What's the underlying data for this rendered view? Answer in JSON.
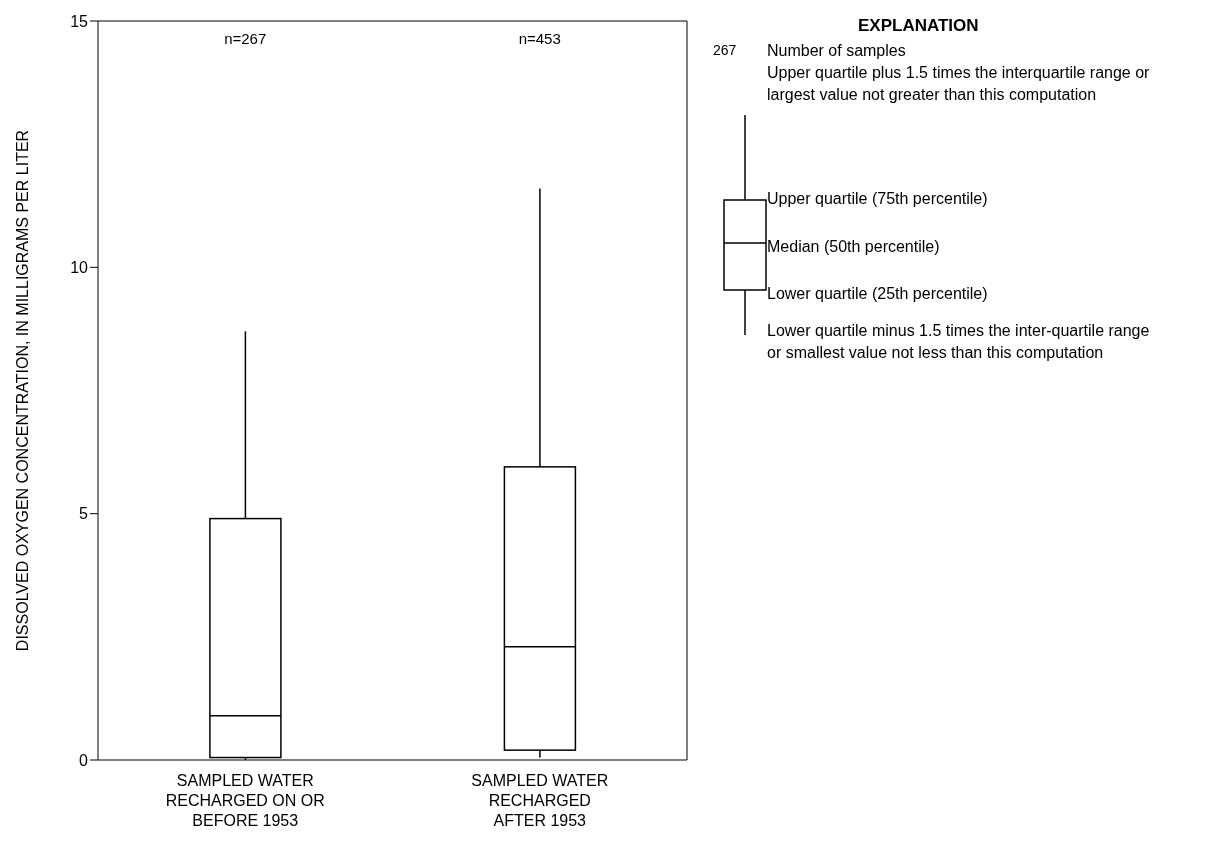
{
  "chart_data": {
    "type": "box",
    "ylabel": "DISSOLVED OXYGEN CONCENTRATION, IN MILLIGRAMS PER LITER",
    "legend_title": "EXPLANATION",
    "categories": [
      "SAMPLED WATER\nRECHARGED ON OR\nBEFORE 1953",
      "SAMPLED WATER\nRECHARGED\nAFTER 1953"
    ],
    "color": "#000000",
    "boxes": [
      {
        "low": 0,
        "q1": 0.05,
        "median": 0.9,
        "q3": 4.9,
        "high": 8.7
      },
      {
        "low": 0.05,
        "q1": 0.2,
        "median": 2.3,
        "q3": 5.95,
        "high": 11.6
      }
    ],
    "ylim": [
      0,
      15
    ],
    "yticks": [
      0,
      5,
      10,
      15
    ],
    "annotations": [
      "n=267",
      "n=453",
      "267",
      "Number of samples",
      "Upper quartile plus 1.5 times the interquartile range or largest value not greater than this computation",
      "Upper quartile (75th percentile)",
      "Median (50th percentile)",
      "Lower quartile (25th percentile)",
      "Lower quartile minus 1.5 times the inter-quartile range or smallest value not less than this computation"
    ]
  }
}
